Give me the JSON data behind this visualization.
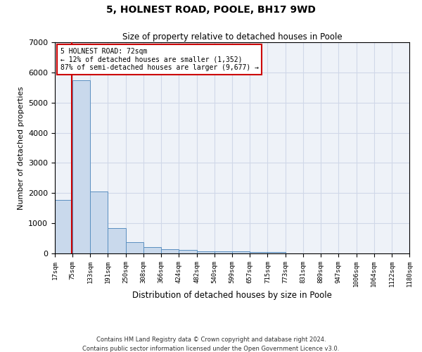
{
  "title": "5, HOLNEST ROAD, POOLE, BH17 9WD",
  "subtitle": "Size of property relative to detached houses in Poole",
  "xlabel": "Distribution of detached houses by size in Poole",
  "ylabel": "Number of detached properties",
  "annotation_title": "5 HOLNEST ROAD: 72sqm",
  "annotation_line1": "← 12% of detached houses are smaller (1,352)",
  "annotation_line2": "87% of semi-detached houses are larger (9,677) →",
  "property_size": 72,
  "bin_edges": [
    17,
    75,
    133,
    191,
    250,
    308,
    366,
    424,
    482,
    540,
    599,
    657,
    715,
    773,
    831,
    889,
    947,
    1006,
    1064,
    1122,
    1180
  ],
  "bar_heights": [
    1780,
    5750,
    2050,
    830,
    380,
    220,
    130,
    110,
    80,
    70,
    60,
    55,
    50,
    0,
    0,
    0,
    0,
    0,
    0,
    0
  ],
  "bar_color": "#c9d9ec",
  "bar_edge_color": "#5a8fc0",
  "red_line_color": "#cc0000",
  "annotation_box_color": "#ffffff",
  "annotation_box_edge": "#cc0000",
  "grid_color": "#d0d8e8",
  "bg_color": "#eef2f8",
  "footer1": "Contains HM Land Registry data © Crown copyright and database right 2024.",
  "footer2": "Contains public sector information licensed under the Open Government Licence v3.0.",
  "ylim": [
    0,
    7000
  ],
  "yticks": [
    0,
    1000,
    2000,
    3000,
    4000,
    5000,
    6000,
    7000
  ]
}
